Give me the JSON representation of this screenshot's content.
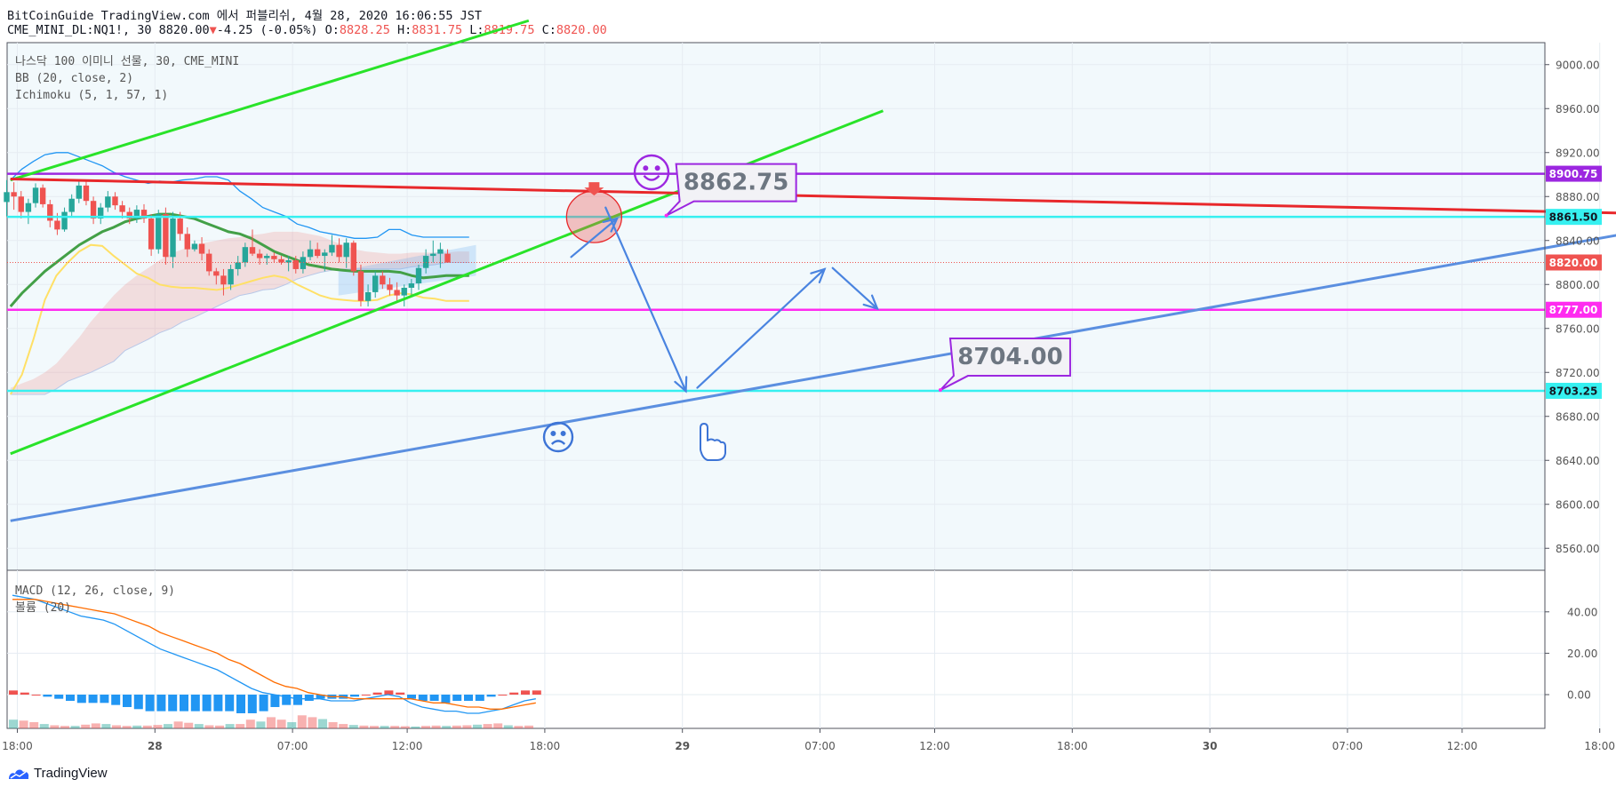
{
  "header": {
    "line1": "BitCoinGuide TradingView.com 에서 퍼블리쉬, 4월 28, 2020 16:06:55 JST",
    "symbol": "CME_MINI_DL:NQ1!, 30 8820.00",
    "arrow": "▼",
    "change": "-4.25 (-0.05%)",
    "o_label": "O:",
    "o_value": "8828.25",
    "h_label": "H:",
    "h_value": "8831.75",
    "l_label": "L:",
    "l_value": "8819.75",
    "c_label": "C:",
    "c_value": "8820.00"
  },
  "legend": {
    "line1": "나스닥 100 이미니 선물, 30, CME_MINI",
    "line2": "BB (20, close, 2)",
    "line3": "Ichimoku (5, 1, 57, 1)",
    "macd_line1": "MACD (12, 26, close, 9)",
    "macd_line2": "볼륨 (20)"
  },
  "footer": {
    "brand": "TradingView"
  },
  "colors": {
    "green": "#29e329",
    "red": "#e8282b",
    "purple": "#9c27e0",
    "cyan": "#36f0f0",
    "magenta": "#ff2bf0",
    "blue": "#5b8fe0",
    "bull": "#26a69a",
    "bear": "#ef5350",
    "bb": "#2196f3",
    "kijun": "#43a047",
    "tenkan": "#ffe066",
    "macd": "#2196f3",
    "signal": "#ff6d00"
  },
  "chart_data": {
    "type": "candlestick",
    "symbol": "CME_MINI_DL:NQ1!",
    "interval": "30",
    "ylim": [
      8540,
      9020
    ],
    "price_ticks": [
      9000,
      8960,
      8920,
      8880,
      8840,
      8800,
      8760,
      8720,
      8680,
      8640,
      8600,
      8560
    ],
    "price_tick_labels": [
      "9000.00",
      "8960.00",
      "8920.00",
      "8880.00",
      "8840.00",
      "8800.00",
      "8760.00",
      "8720.00",
      "8680.00",
      "8640.00",
      "8600.00",
      "8560.00"
    ],
    "time_ticks": [
      {
        "bar": 0,
        "label": "18:00",
        "bold": false
      },
      {
        "bar": 12,
        "label": "28",
        "bold": true
      },
      {
        "bar": 24,
        "label": "07:00",
        "bold": false
      },
      {
        "bar": 34,
        "label": "12:00",
        "bold": false
      },
      {
        "bar": 46,
        "label": "18:00",
        "bold": false
      },
      {
        "bar": 58,
        "label": "29",
        "bold": true
      },
      {
        "bar": 70,
        "label": "07:00",
        "bold": false
      },
      {
        "bar": 80,
        "label": "12:00",
        "bold": false
      },
      {
        "bar": 92,
        "label": "18:00",
        "bold": false
      },
      {
        "bar": 104,
        "label": "30",
        "bold": true
      },
      {
        "bar": 116,
        "label": "07:00",
        "bold": false
      },
      {
        "bar": 126,
        "label": "12:00",
        "bold": false
      },
      {
        "bar": 138,
        "label": "18:00",
        "bold": false
      }
    ],
    "candles": [
      {
        "o": 8875,
        "h": 8895,
        "l": 8862,
        "c": 8884
      },
      {
        "o": 8884,
        "h": 8893,
        "l": 8868,
        "c": 8880
      },
      {
        "o": 8880,
        "h": 8885,
        "l": 8860,
        "c": 8866
      },
      {
        "o": 8866,
        "h": 8878,
        "l": 8855,
        "c": 8874
      },
      {
        "o": 8874,
        "h": 8892,
        "l": 8870,
        "c": 8888
      },
      {
        "o": 8888,
        "h": 8891,
        "l": 8870,
        "c": 8873
      },
      {
        "o": 8873,
        "h": 8877,
        "l": 8852,
        "c": 8858
      },
      {
        "o": 8858,
        "h": 8865,
        "l": 8845,
        "c": 8850
      },
      {
        "o": 8850,
        "h": 8870,
        "l": 8848,
        "c": 8866
      },
      {
        "o": 8866,
        "h": 8882,
        "l": 8862,
        "c": 8878
      },
      {
        "o": 8878,
        "h": 8895,
        "l": 8874,
        "c": 8890
      },
      {
        "o": 8890,
        "h": 8894,
        "l": 8872,
        "c": 8876
      },
      {
        "o": 8876,
        "h": 8880,
        "l": 8855,
        "c": 8860
      },
      {
        "o": 8860,
        "h": 8874,
        "l": 8855,
        "c": 8870
      },
      {
        "o": 8870,
        "h": 8885,
        "l": 8866,
        "c": 8880
      },
      {
        "o": 8880,
        "h": 8884,
        "l": 8868,
        "c": 8872
      },
      {
        "o": 8872,
        "h": 8876,
        "l": 8860,
        "c": 8866
      },
      {
        "o": 8866,
        "h": 8870,
        "l": 8855,
        "c": 8860
      },
      {
        "o": 8860,
        "h": 8872,
        "l": 8856,
        "c": 8868
      },
      {
        "o": 8868,
        "h": 8873,
        "l": 8856,
        "c": 8860
      },
      {
        "o": 8860,
        "h": 8864,
        "l": 8826,
        "c": 8832
      },
      {
        "o": 8832,
        "h": 8868,
        "l": 8828,
        "c": 8864
      },
      {
        "o": 8864,
        "h": 8870,
        "l": 8818,
        "c": 8825
      },
      {
        "o": 8825,
        "h": 8866,
        "l": 8815,
        "c": 8860
      },
      {
        "o": 8860,
        "h": 8866,
        "l": 8840,
        "c": 8846
      },
      {
        "o": 8846,
        "h": 8852,
        "l": 8825,
        "c": 8832
      },
      {
        "o": 8832,
        "h": 8840,
        "l": 8830,
        "c": 8837
      },
      {
        "o": 8837,
        "h": 8843,
        "l": 8822,
        "c": 8828
      },
      {
        "o": 8828,
        "h": 8832,
        "l": 8808,
        "c": 8812
      },
      {
        "o": 8812,
        "h": 8815,
        "l": 8800,
        "c": 8808
      },
      {
        "o": 8808,
        "h": 8814,
        "l": 8790,
        "c": 8800
      },
      {
        "o": 8800,
        "h": 8818,
        "l": 8795,
        "c": 8814
      },
      {
        "o": 8814,
        "h": 8826,
        "l": 8808,
        "c": 8820
      },
      {
        "o": 8820,
        "h": 8838,
        "l": 8816,
        "c": 8834
      },
      {
        "o": 8834,
        "h": 8850,
        "l": 8826,
        "c": 8828
      },
      {
        "o": 8828,
        "h": 8832,
        "l": 8818,
        "c": 8824
      },
      {
        "o": 8824,
        "h": 8828,
        "l": 8818,
        "c": 8826
      },
      {
        "o": 8826,
        "h": 8829,
        "l": 8820,
        "c": 8823
      },
      {
        "o": 8823,
        "h": 8826,
        "l": 8818,
        "c": 8820
      },
      {
        "o": 8820,
        "h": 8826,
        "l": 8812,
        "c": 8822
      },
      {
        "o": 8822,
        "h": 8826,
        "l": 8810,
        "c": 8814
      },
      {
        "o": 8814,
        "h": 8830,
        "l": 8810,
        "c": 8825
      },
      {
        "o": 8825,
        "h": 8840,
        "l": 8822,
        "c": 8832
      },
      {
        "o": 8832,
        "h": 8838,
        "l": 8824,
        "c": 8826
      },
      {
        "o": 8826,
        "h": 8832,
        "l": 8812,
        "c": 8829
      },
      {
        "o": 8829,
        "h": 8845,
        "l": 8826,
        "c": 8836
      },
      {
        "o": 8836,
        "h": 8842,
        "l": 8820,
        "c": 8825
      },
      {
        "o": 8825,
        "h": 8842,
        "l": 8815,
        "c": 8838
      },
      {
        "o": 8838,
        "h": 8840,
        "l": 8808,
        "c": 8812
      },
      {
        "o": 8812,
        "h": 8818,
        "l": 8780,
        "c": 8785
      },
      {
        "o": 8785,
        "h": 8800,
        "l": 8780,
        "c": 8793
      },
      {
        "o": 8793,
        "h": 8812,
        "l": 8788,
        "c": 8808
      },
      {
        "o": 8808,
        "h": 8812,
        "l": 8796,
        "c": 8800
      },
      {
        "o": 8800,
        "h": 8806,
        "l": 8790,
        "c": 8795
      },
      {
        "o": 8795,
        "h": 8802,
        "l": 8785,
        "c": 8790
      },
      {
        "o": 8790,
        "h": 8800,
        "l": 8780,
        "c": 8797
      },
      {
        "o": 8797,
        "h": 8805,
        "l": 8790,
        "c": 8801
      },
      {
        "o": 8801,
        "h": 8818,
        "l": 8795,
        "c": 8815
      },
      {
        "o": 8815,
        "h": 8832,
        "l": 8810,
        "c": 8826
      },
      {
        "o": 8826,
        "h": 8840,
        "l": 8820,
        "c": 8828
      },
      {
        "o": 8828,
        "h": 8838,
        "l": 8815,
        "c": 8832
      },
      {
        "o": 8828,
        "h": 8832,
        "l": 8820,
        "c": 8820
      }
    ],
    "bollinger_upper": [
      8895,
      8905,
      8912,
      8918,
      8920,
      8920,
      8916,
      8912,
      8908,
      8902,
      8898,
      8895,
      8892,
      8894,
      8893,
      8895,
      8896,
      8898,
      8898,
      8895,
      8885,
      8878,
      8870,
      8866,
      8862,
      8855,
      8852,
      8848,
      8846,
      8844,
      8842,
      8842,
      8843,
      8850,
      8850,
      8845,
      8843,
      8843,
      8843,
      8843,
      8843
    ],
    "bollinger_basis": [
      8780,
      8792,
      8802,
      8812,
      8820,
      8828,
      8836,
      8842,
      8848,
      8852,
      8857,
      8860,
      8862,
      8864,
      8864,
      8862,
      8860,
      8856,
      8852,
      8848,
      8846,
      8842,
      8836,
      8830,
      8826,
      8822,
      8818,
      8816,
      8814,
      8813,
      8812,
      8812,
      8812,
      8812,
      8811,
      8808,
      8806,
      8807,
      8808,
      8808,
      8808
    ],
    "tenkan": [
      8700,
      8718,
      8750,
      8786,
      8808,
      8820,
      8830,
      8836,
      8835,
      8826,
      8818,
      8810,
      8806,
      8800,
      8798,
      8797,
      8797,
      8796,
      8795,
      8797,
      8800,
      8803,
      8806,
      8808,
      8806,
      8800,
      8795,
      8790,
      8787,
      8786,
      8785,
      8785,
      8786,
      8790,
      8792,
      8791,
      8788,
      8787,
      8785,
      8785,
      8785
    ],
    "ichimoku_spanA": [
      8706,
      8710,
      8714,
      8720,
      8728,
      8740,
      8752,
      8766,
      8778,
      8790,
      8800,
      8808,
      8815,
      8822,
      8828,
      8832,
      8835,
      8838,
      8840,
      8842,
      8843,
      8845,
      8846,
      8848,
      8848,
      8848,
      8846,
      8844,
      8840,
      8836,
      8832,
      8830,
      8829,
      8828,
      8828,
      8829,
      8829,
      8829,
      8829,
      8830,
      8830
    ],
    "ichimoku_spanB": [
      8700,
      8700,
      8700,
      8700,
      8705,
      8712,
      8716,
      8720,
      8725,
      8730,
      8740,
      8745,
      8750,
      8756,
      8760,
      8766,
      8770,
      8775,
      8780,
      8785,
      8790,
      8792,
      8795,
      8796,
      8800,
      8805,
      8808,
      8811,
      8813,
      8814,
      8814,
      8814,
      8814,
      8814,
      8814,
      8816,
      8817,
      8818,
      8820,
      8820,
      8820
    ],
    "last_price": 8820.0,
    "levels": [
      {
        "name": "purple-level",
        "value": 8900.75,
        "label": "8900.75"
      },
      {
        "name": "cyan-level-upper",
        "value": 8861.5,
        "label": "8861.50"
      },
      {
        "name": "current-price",
        "value": 8820.0,
        "label": "8820.00"
      },
      {
        "name": "magenta-level",
        "value": 8777.0,
        "label": "8777.00"
      },
      {
        "name": "cyan-level-lower",
        "value": 8703.25,
        "label": "8703.25"
      }
    ],
    "trendlines": [
      {
        "name": "green-channel-upper",
        "color": "green",
        "from": {
          "bar": -0.6,
          "price": 8895
        },
        "to": {
          "bar": 44.6,
          "price": 9040
        }
      },
      {
        "name": "green-channel-lower",
        "color": "green",
        "from": {
          "bar": -0.6,
          "price": 8646
        },
        "to": {
          "bar": 75.5,
          "price": 8958
        }
      },
      {
        "name": "red-trendline",
        "color": "red",
        "from": {
          "bar": -0.6,
          "price": 8896
        },
        "to": {
          "bar": 139.6,
          "price": 8865
        }
      },
      {
        "name": "blue-trendline",
        "color": "blue",
        "from": {
          "bar": -0.6,
          "price": 8585
        },
        "to": {
          "bar": 139.6,
          "price": 8845
        }
      }
    ],
    "callouts": [
      {
        "name": "callout-8862",
        "text": "8862.75",
        "anchor": {
          "bar": 56.6,
          "price": 8862.75
        }
      },
      {
        "name": "callout-8704",
        "text": "8704.00",
        "anchor": {
          "bar": 80.5,
          "price": 8704
        }
      }
    ],
    "projection_path": [
      {
        "bar": 48.3,
        "price": 8825
      },
      {
        "bar": 52.7,
        "price": 8868
      },
      {
        "bar": 58.3,
        "price": 8703
      },
      {
        "bar": 70.4,
        "price": 8814
      },
      {
        "bar": 70.1,
        "price": 8790
      }
    ],
    "macd_axis": {
      "ticks": [
        40,
        20,
        0
      ],
      "labels": [
        "40.00",
        "20.00",
        "0.00"
      ]
    },
    "macd_line": [
      48,
      47,
      46,
      44,
      42,
      40,
      38,
      37,
      36,
      34,
      31,
      28,
      25,
      22,
      20,
      18,
      16,
      14,
      12,
      9,
      6,
      3,
      1,
      0,
      -1,
      -2,
      -2,
      -2,
      -3,
      -3,
      -3,
      -2,
      -1,
      0,
      -1,
      -4,
      -6,
      -7,
      -8,
      -8,
      -9,
      -9,
      -8,
      -7,
      -5,
      -3,
      -2
    ],
    "signal_line": [
      46,
      46,
      46,
      45,
      44,
      43,
      42,
      41,
      40,
      39,
      37,
      35,
      33,
      30,
      28,
      26,
      24,
      22,
      20,
      17,
      15,
      12,
      9,
      6,
      4,
      3,
      1,
      0,
      -1,
      -1,
      -2,
      -2,
      -2,
      -2,
      -2,
      -2,
      -3,
      -4,
      -4,
      -5,
      -6,
      -6,
      -7,
      -7,
      -6,
      -5,
      -4
    ],
    "macd_histogram": [
      2,
      1,
      0,
      -1,
      -2,
      -3,
      -4,
      -4,
      -4,
      -5,
      -6,
      -7,
      -8,
      -8,
      -8,
      -8,
      -8,
      -8,
      -8,
      -8,
      -9,
      -9,
      -8,
      -6,
      -5,
      -5,
      -3,
      -2,
      -2,
      -2,
      -1,
      0,
      1,
      2,
      1,
      -2,
      -3,
      -3,
      -4,
      -3,
      -3,
      -3,
      -1,
      0,
      1,
      2,
      2
    ],
    "volume": [
      28,
      25,
      20,
      14,
      10,
      8,
      8,
      12,
      16,
      14,
      10,
      8,
      9,
      9,
      11,
      14,
      22,
      18,
      14,
      10,
      9,
      14,
      14,
      28,
      22,
      36,
      28,
      20,
      42,
      36,
      30,
      20,
      14,
      11,
      9,
      8,
      8,
      8,
      7,
      6,
      8,
      9,
      8,
      9,
      10,
      12,
      14,
      16,
      10,
      8,
      9
    ]
  }
}
